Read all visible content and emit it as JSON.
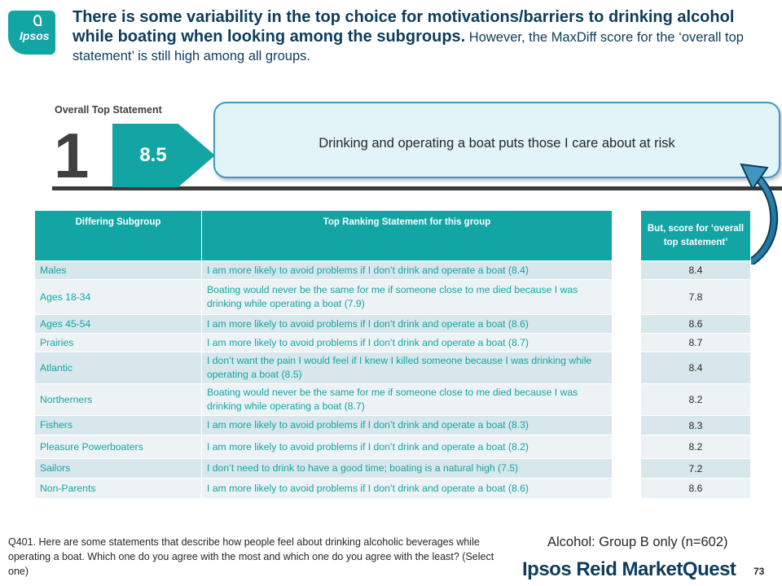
{
  "logo": {
    "text": "Ipsos"
  },
  "title": {
    "bold": "There is some variability in the top choice for motivations/barriers to drinking alcohol while boating when looking among the subgroups.",
    "normal": " However, the MaxDiff score for the ‘overall top statement’ is still high among all groups."
  },
  "overall": {
    "label": "Overall Top Statement",
    "rank": "1",
    "score": "8.5",
    "statement": "Drinking and operating a boat puts those I care about at risk"
  },
  "table": {
    "headers": [
      "Differing Subgroup",
      "Top Ranking Statement for this group"
    ],
    "score_header": "But, score for ‘overall top statement’",
    "rows": [
      {
        "subgroup": "Males",
        "statement": "I am more likely to avoid problems if I don’t drink and operate a boat (8.4)",
        "score": "8.4"
      },
      {
        "subgroup": "Ages 18-34",
        "statement": "Boating would never be the same for me if someone close to me died because I was drinking while operating a boat (7.9)",
        "score": "7.8"
      },
      {
        "subgroup": "Ages 45-54",
        "statement": "I am more likely to avoid problems if I don’t drink and operate a boat (8.6)",
        "score": "8.6"
      },
      {
        "subgroup": "Prairies",
        "statement": "I am more likely to avoid problems if I don’t drink and operate a boat (8.7)",
        "score": "8.7"
      },
      {
        "subgroup": "Atlantic",
        "statement": "I don’t want the pain I would feel if I knew I killed someone because I was drinking while operating a boat (8.5)",
        "score": "8.4"
      },
      {
        "subgroup": "Northerners",
        "statement": "Boating would never be the same for me if someone close to me died because I was drinking while operating a boat (8.7)",
        "score": "8.2"
      },
      {
        "subgroup": "Fishers",
        "statement": "I am more likely to avoid problems if I don’t drink and operate a boat (8.3)",
        "score": "8.3"
      },
      {
        "subgroup": "Pleasure Powerboaters",
        "statement": "I am more likely to avoid problems if I don’t drink and operate a boat (8.2)",
        "score": "8.2"
      },
      {
        "subgroup": "Sailors",
        "statement": "I don’t need to drink to have a good time; boating is a natural high (7.5)",
        "score": "7.2"
      },
      {
        "subgroup": "Non-Parents",
        "statement": "I am more likely to avoid problems if I don’t drink and operate a boat (8.6)",
        "score": "8.6"
      }
    ]
  },
  "footnote": "Q401. Here are some statements that describe how people feel about drinking alcoholic beverages while operating a boat.  Which one do you agree with the most and which one do you agree with the least?   (Select one)",
  "base": "Alcohol: Group B only (n=602)",
  "brand": "Ipsos Reid MarketQuest",
  "page_number": "73",
  "colors": {
    "teal": "#13a4a4",
    "navy": "#0d3c5c",
    "row_dark": "#d8e7eb",
    "row_light": "#edf3f5",
    "box_border": "#3f97c0"
  }
}
